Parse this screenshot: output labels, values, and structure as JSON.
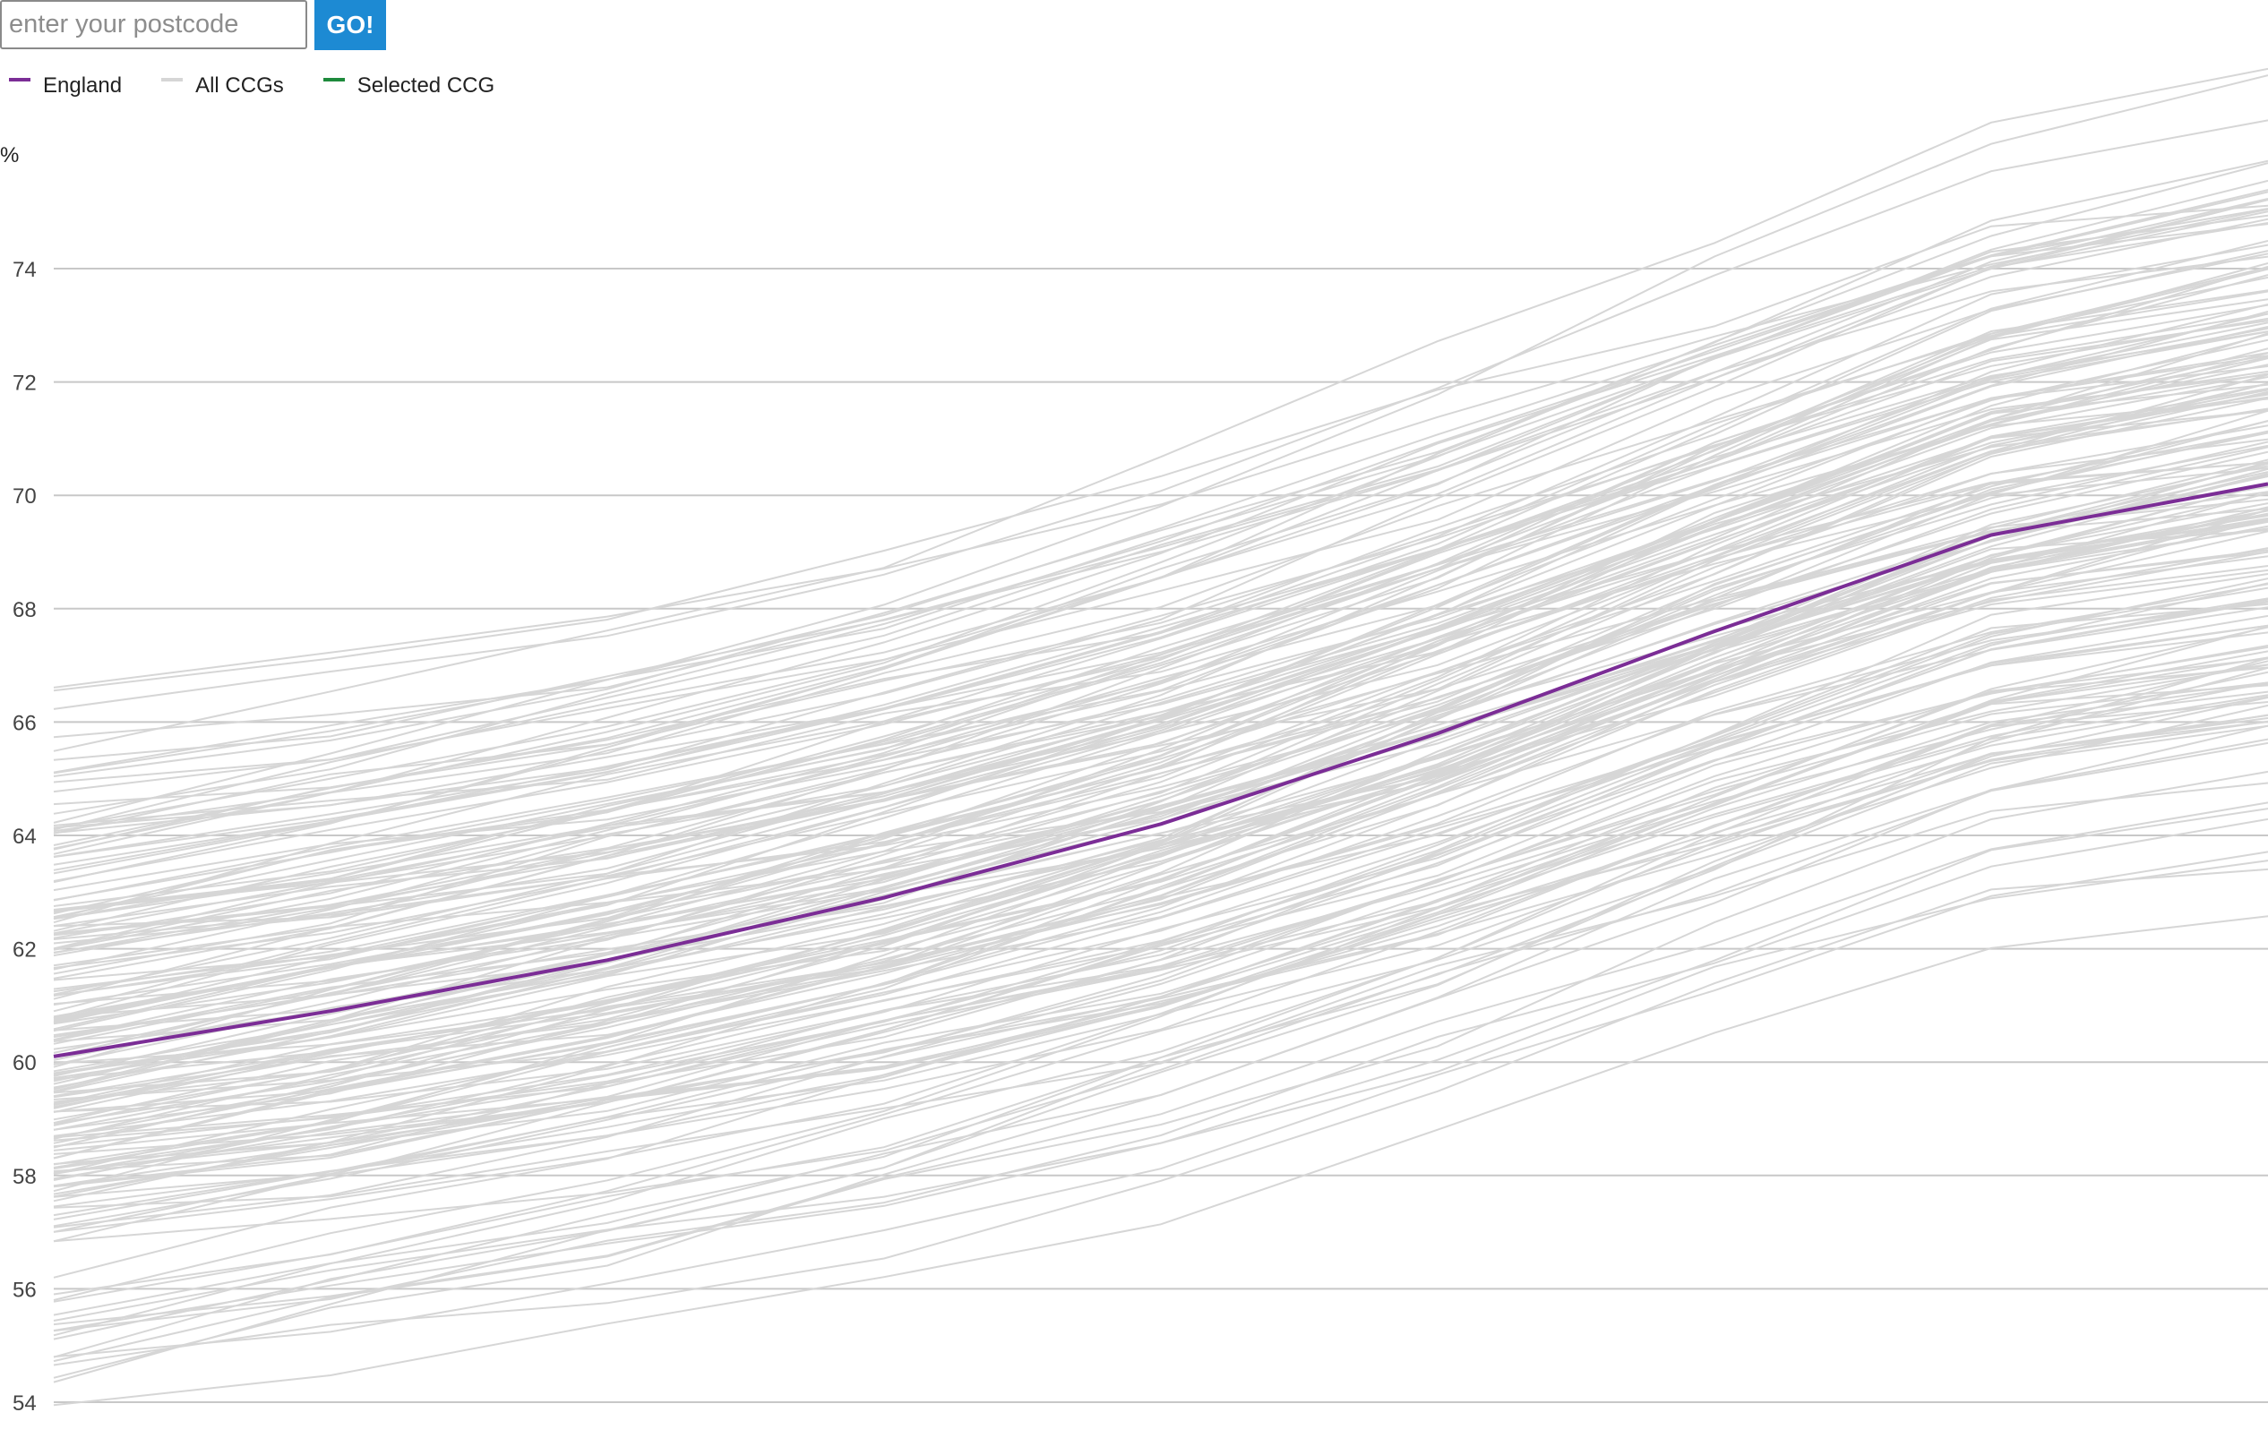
{
  "search": {
    "placeholder": "enter your postcode",
    "go_label": "GO!"
  },
  "legend": [
    {
      "label": "England",
      "color": "#7b2d96"
    },
    {
      "label": "All CCGs",
      "color": "#d6d6d6"
    },
    {
      "label": "Selected CCG",
      "color": "#1e8a3c"
    }
  ],
  "chart_data": {
    "type": "line",
    "ylabel": "%",
    "ylim": [
      53.4,
      75.2
    ],
    "yticks": [
      54,
      56,
      58,
      60,
      62,
      64,
      66,
      68,
      70,
      72,
      74
    ],
    "grid": true,
    "legend_position": "top-left",
    "x": [
      0,
      1,
      2,
      3,
      4,
      5,
      6,
      7,
      8
    ],
    "series": [
      {
        "name": "England",
        "color": "#7b2d96",
        "values": [
          60.1,
          60.9,
          61.8,
          62.9,
          64.2,
          65.8,
          67.6,
          69.3,
          70.2
        ]
      }
    ],
    "background_series": {
      "name": "All CCGs",
      "color": "#d6d6d6",
      "count": 191,
      "start_range": [
        53.2,
        64.7
      ],
      "end_range": [
        63.9,
        74.6
      ]
    }
  }
}
